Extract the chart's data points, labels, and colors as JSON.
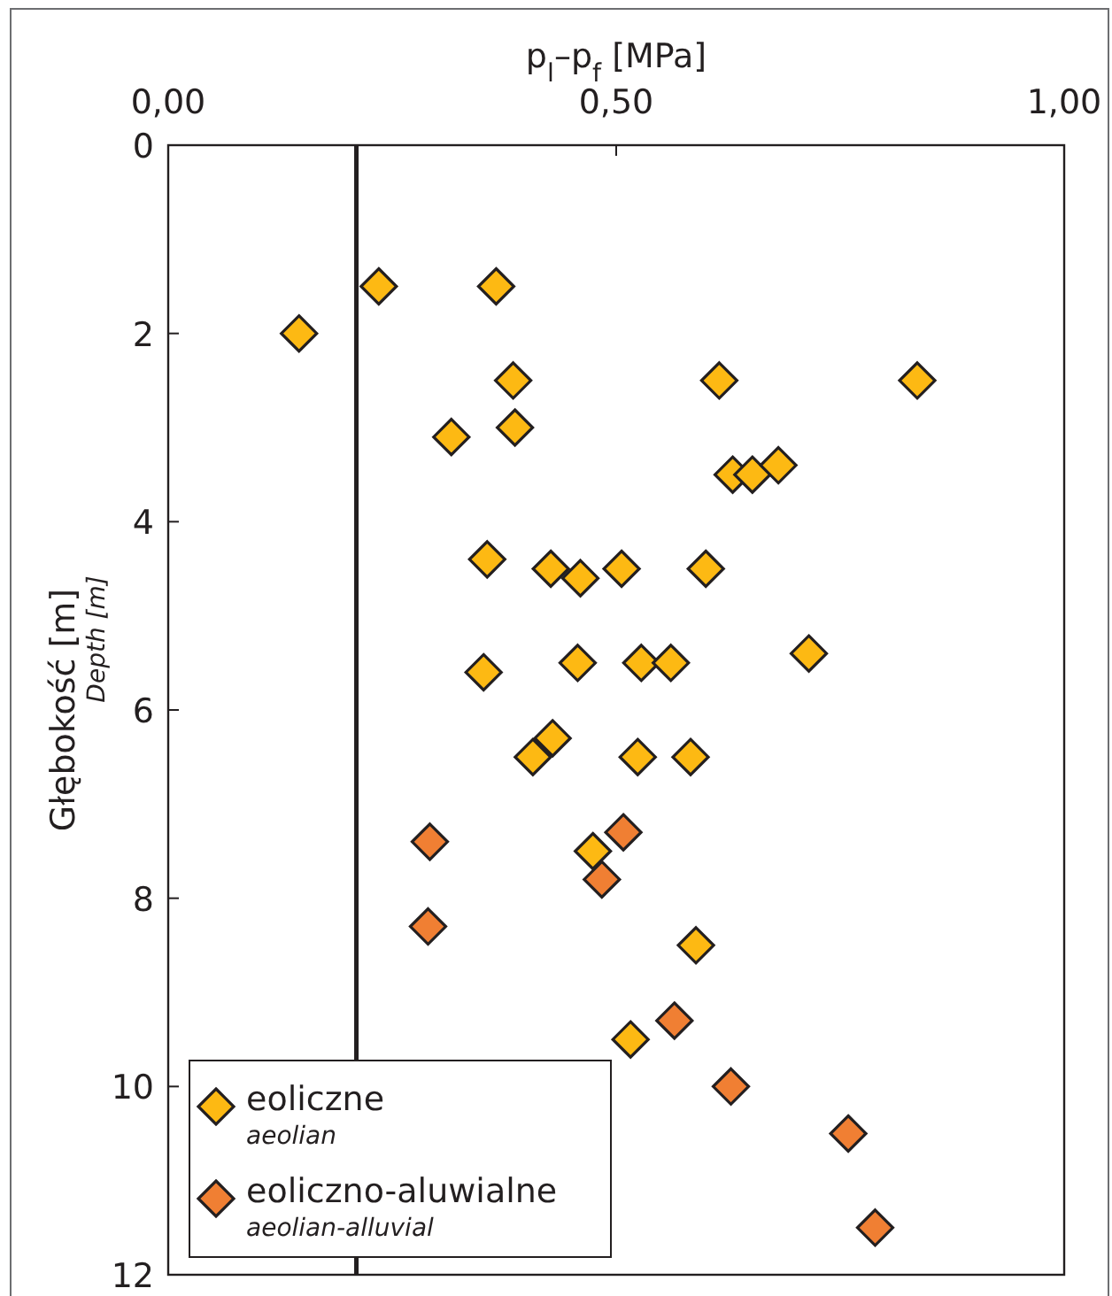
{
  "chart_data": {
    "type": "scatter",
    "xlabel": "p$_{l}$–p$_{f}$ [MPa]",
    "ylabel": "Głębokość [m]",
    "annotations": [
      "Depth [m]"
    ],
    "xlim": [
      0,
      1
    ],
    "xticks": [
      {
        "value": 0,
        "label": "0,00"
      },
      {
        "value": 0.5,
        "label": "0,50"
      },
      {
        "value": 1,
        "label": "1,00"
      }
    ],
    "ylim": [
      12,
      0
    ],
    "yticks": [
      0,
      2,
      4,
      6,
      8,
      10,
      12
    ],
    "grid": false,
    "legend": "bottom left",
    "marker": "diamond",
    "ref_lines": [
      {
        "axis": "x",
        "value": 0.21,
        "color": "#231f20"
      }
    ],
    "series": [
      {
        "name": "eoliczne\naeolian",
        "color": "#fdb913",
        "x": [
          0.235,
          0.366,
          0.146,
          0.385,
          0.615,
          0.836,
          0.316,
          0.387,
          0.63,
          0.652,
          0.681,
          0.356,
          0.427,
          0.46,
          0.506,
          0.6,
          0.352,
          0.457,
          0.528,
          0.561,
          0.715,
          0.429,
          0.407,
          0.524,
          0.583,
          0.474,
          0.589,
          0.516
        ],
        "values": [
          1.5,
          1.5,
          2.0,
          2.5,
          2.5,
          2.5,
          3.1,
          3.0,
          3.5,
          3.5,
          3.4,
          4.4,
          4.5,
          4.6,
          4.5,
          4.5,
          5.6,
          5.5,
          5.5,
          5.5,
          5.4,
          6.3,
          6.5,
          6.5,
          6.5,
          7.5,
          8.5,
          9.5
        ]
      },
      {
        "name": "eoliczno-aluwialne\naeolian-alluvial",
        "color": "#f07f33",
        "x": [
          0.292,
          0.508,
          0.484,
          0.29,
          0.565,
          0.628,
          0.759,
          0.789
        ],
        "values": [
          7.4,
          7.3,
          7.8,
          8.3,
          9.3,
          10.0,
          10.5,
          11.5
        ]
      }
    ]
  }
}
